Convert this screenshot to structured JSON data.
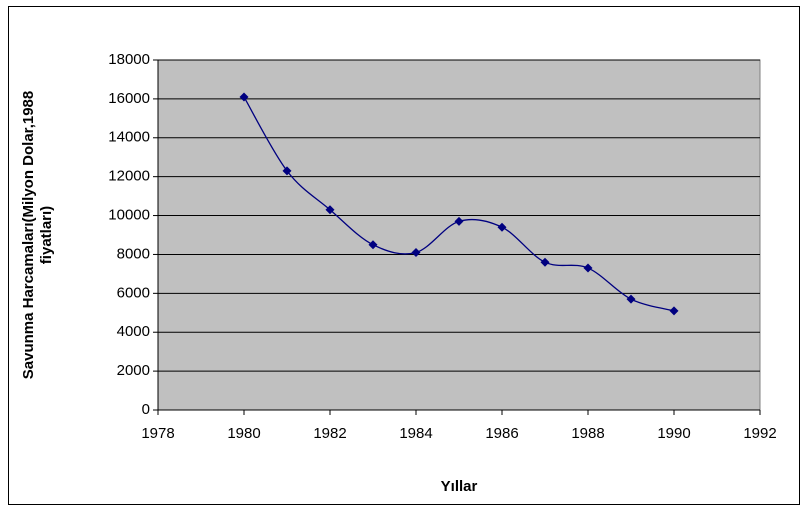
{
  "chart_data": {
    "type": "line",
    "ylabel": "Savunma Harcamaları(Milyon Dolar,1988 fiyatları)",
    "xlabel": "Yıllar",
    "x": [
      1980,
      1981,
      1982,
      1983,
      1984,
      1985,
      1986,
      1987,
      1988,
      1989,
      1990
    ],
    "series": [
      {
        "name": null,
        "color": "#000080",
        "values": [
          16100,
          12300,
          10300,
          8500,
          8100,
          9700,
          9400,
          7600,
          7300,
          5700,
          5100
        ]
      }
    ],
    "xlim": [
      1978,
      1992
    ],
    "xticks": [
      1978,
      1980,
      1982,
      1984,
      1986,
      1988,
      1990,
      1992
    ],
    "ylim": [
      0,
      18000
    ],
    "yticks": [
      0,
      2000,
      4000,
      6000,
      8000,
      10000,
      12000,
      14000,
      16000,
      18000
    ],
    "grid": true,
    "smooth": true
  }
}
